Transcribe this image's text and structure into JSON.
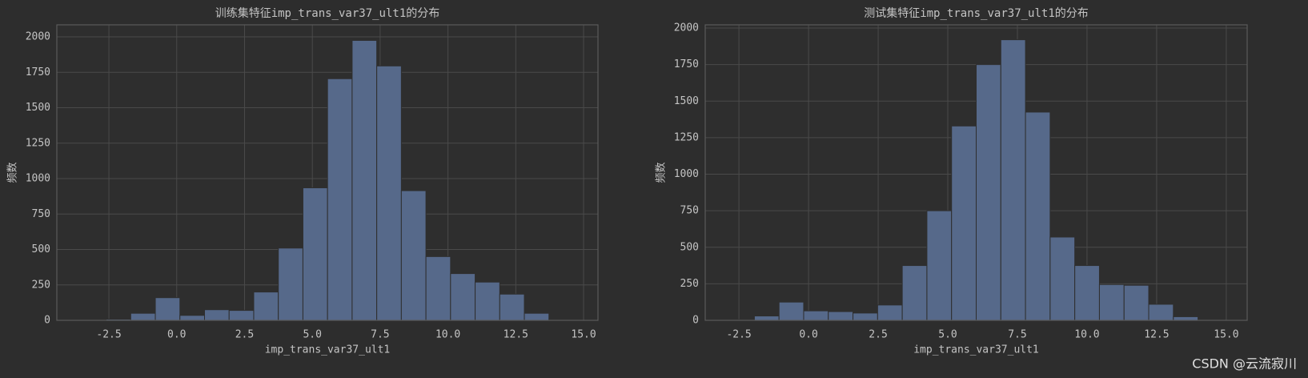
{
  "chart_data": [
    {
      "type": "histogram",
      "title": "训练集特征imp_trans_var37_ult1的分布",
      "xlabel": "imp_trans_var37_ult1",
      "ylabel": "频数",
      "bins": [
        -3.51,
        -2.603,
        -1.696,
        -0.789,
        0.118,
        1.025,
        1.932,
        2.839,
        3.746,
        4.653,
        5.56,
        6.467,
        7.374,
        8.281,
        9.188,
        10.095,
        11.002,
        11.909,
        12.816,
        13.723,
        14.63
      ],
      "values": [
        2,
        8,
        50,
        160,
        35,
        75,
        70,
        200,
        510,
        935,
        1705,
        1975,
        1795,
        915,
        450,
        330,
        270,
        185,
        50,
        5
      ],
      "color": "#56698a",
      "grid": true,
      "xlim": [
        -4.42,
        15.53
      ],
      "xticks": [
        -2.5,
        {
          "value": 0,
          "label": "0.0"
        },
        2.5,
        {
          "value": 5,
          "label": "5.0"
        },
        7.5,
        {
          "value": 10,
          "label": "10.0"
        },
        12.5,
        {
          "value": 15,
          "label": "15.0"
        }
      ],
      "ylim": [
        0,
        2085
      ],
      "yticks": [
        0,
        250,
        500,
        750,
        1000,
        1250,
        1500,
        1750,
        2000
      ]
    },
    {
      "type": "histogram",
      "title": "测试集特征imp_trans_var37_ult1的分布",
      "xlabel": "imp_trans_var37_ult1",
      "ylabel": "频数",
      "bins": [
        -2.83,
        -1.945,
        -1.06,
        -0.175,
        0.71,
        1.595,
        2.48,
        3.365,
        4.25,
        5.135,
        6.02,
        6.905,
        7.79,
        8.675,
        9.56,
        10.445,
        11.33,
        12.215,
        13.1,
        13.985,
        14.87
      ],
      "values": [
        5,
        30,
        125,
        65,
        60,
        50,
        105,
        375,
        750,
        1330,
        1750,
        1920,
        1425,
        570,
        375,
        245,
        240,
        110,
        25,
        3
      ],
      "color": "#56698a",
      "grid": true,
      "xlim": [
        -3.71,
        15.75
      ],
      "xticks": [
        -2.5,
        {
          "value": 0,
          "label": "0.0"
        },
        2.5,
        {
          "value": 5,
          "label": "5.0"
        },
        7.5,
        {
          "value": 10,
          "label": "10.0"
        },
        12.5,
        {
          "value": 15,
          "label": "15.0"
        }
      ],
      "ylim": [
        0,
        2022
      ],
      "yticks": [
        0,
        250,
        500,
        750,
        1000,
        1250,
        1500,
        1750,
        2000
      ]
    }
  ],
  "watermark": "CSDN @云流寂川"
}
